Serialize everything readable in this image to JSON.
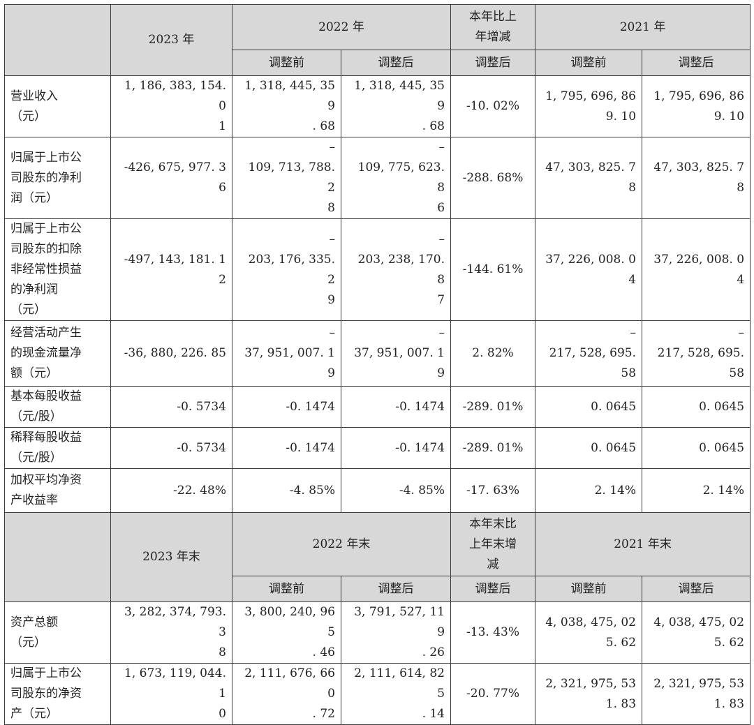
{
  "header1": {
    "y2023": "2023 年",
    "y2022": "2022 年",
    "change_l1": "本年比上",
    "change_l2": "年增减",
    "y2021": "2021 年",
    "before": "调整前",
    "after": "调整后"
  },
  "rows1": [
    {
      "label": [
        "营业收入",
        "（元）"
      ],
      "c2023": [
        "1, 186, 383, 154. 0",
        "1"
      ],
      "c2022b": [
        "1, 318, 445, 359",
        ". 68"
      ],
      "c2022a": [
        "1, 318, 445, 359",
        ". 68"
      ],
      "chg": "-10. 02%",
      "c2021b": [
        "1, 795, 696, 86",
        "9. 10"
      ],
      "c2021a": [
        "1, 795, 696, 86",
        "9. 10"
      ]
    },
    {
      "label": [
        "归属于上市公",
        "司股东的净利",
        "润（元）"
      ],
      "c2023": "-426, 675, 977. 36",
      "c2022b": [
        "–",
        "109, 713, 788. 2",
        "8"
      ],
      "c2022a": [
        "–",
        "109, 775, 623. 8",
        "6"
      ],
      "chg": "-288. 68%",
      "c2021b": [
        "47, 303, 825. 7",
        "8"
      ],
      "c2021a": [
        "47, 303, 825. 7",
        "8"
      ]
    },
    {
      "label": [
        "归属于上市公",
        "司股东的扣除",
        "非经常性损益",
        "的净利润",
        "（元）"
      ],
      "c2023": "-497, 143, 181. 12",
      "c2022b": [
        "–",
        "203, 176, 335. 2",
        "9"
      ],
      "c2022a": [
        "–",
        "203, 238, 170. 8",
        "7"
      ],
      "chg": "-144. 61%",
      "c2021b": [
        "37, 226, 008. 0",
        "4"
      ],
      "c2021a": [
        "37, 226, 008. 0",
        "4"
      ]
    },
    {
      "label": [
        "经营活动产生",
        "的现金流量净",
        "额（元）"
      ],
      "c2023": "-36, 880, 226. 85",
      "c2022b": [
        "–",
        "37, 951, 007. 19"
      ],
      "c2022a": [
        "–",
        "37, 951, 007. 19"
      ],
      "chg": "2. 82%",
      "c2021b": [
        "–",
        "217, 528, 695.",
        "58"
      ],
      "c2021a": [
        "–",
        "217, 528, 695.",
        "58"
      ]
    },
    {
      "label": [
        "基本每股收益",
        "（元/股）"
      ],
      "c2023": "-0. 5734",
      "c2022b": "-0. 1474",
      "c2022a": "-0. 1474",
      "chg": "-289. 01%",
      "c2021b": "0. 0645",
      "c2021a": "0. 0645"
    },
    {
      "label": [
        "稀释每股收益",
        "（元/股）"
      ],
      "c2023": "-0. 5734",
      "c2022b": "-0. 1474",
      "c2022a": "-0. 1474",
      "chg": "-289. 01%",
      "c2021b": "0. 0645",
      "c2021a": "0. 0645"
    },
    {
      "label": [
        "加权平均净资",
        "产收益率"
      ],
      "c2023": "-22. 48%",
      "c2022b": "-4. 85%",
      "c2022a": "-4. 85%",
      "chg": "-17. 63%",
      "c2021b": "2. 14%",
      "c2021a": "2. 14%"
    }
  ],
  "header2": {
    "y2023": "2023 年末",
    "y2022": "2022 年末",
    "change_l1": "本年末比",
    "change_l2": "上年末增",
    "change_l3": "减",
    "y2021": "2021 年末",
    "before": "调整前",
    "after": "调整后"
  },
  "rows2": [
    {
      "label": [
        "资产总额",
        "（元）"
      ],
      "c2023": [
        "3, 282, 374, 793. 3",
        "8"
      ],
      "c2022b": [
        "3, 800, 240, 965",
        ". 46"
      ],
      "c2022a": [
        "3, 791, 527, 119",
        ". 26"
      ],
      "chg": "-13. 43%",
      "c2021b": [
        "4, 038, 475, 02",
        "5. 62"
      ],
      "c2021a": [
        "4, 038, 475, 02",
        "5. 62"
      ]
    },
    {
      "label": [
        "归属于上市公",
        "司股东的净资",
        "产（元）"
      ],
      "c2023": [
        "1, 673, 119, 044. 1",
        "0"
      ],
      "c2022b": [
        "2, 111, 676, 660",
        ". 72"
      ],
      "c2022a": [
        "2, 111, 614, 825",
        ". 14"
      ],
      "chg": "-20. 77%",
      "c2021b": [
        "2, 321, 975, 53",
        "1. 83"
      ],
      "c2021a": [
        "2, 321, 975, 53",
        "1. 83"
      ]
    }
  ]
}
